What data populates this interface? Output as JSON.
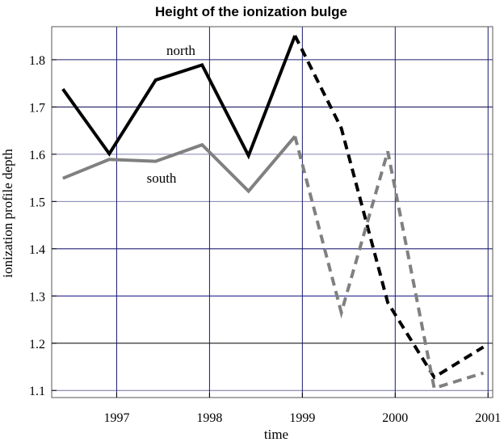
{
  "chart_data": {
    "type": "line",
    "title": "Height of the ionization bulge",
    "xlabel": "time",
    "ylabel": "ionization profile depth",
    "xlim": [
      1996.3,
      2001.05
    ],
    "ylim": [
      1.085,
      1.87
    ],
    "x_ticks": [
      1997,
      1998,
      1999,
      2000,
      2001
    ],
    "x_tick_labels": [
      "1997",
      "1998",
      "1999",
      "2000",
      "2001"
    ],
    "y_ticks": [
      1.1,
      1.2,
      1.3,
      1.4,
      1.5,
      1.6,
      1.7,
      1.8
    ],
    "y_tick_labels": [
      "1.1",
      "1.2",
      "1.3",
      "1.4",
      "1.5",
      "1.6",
      "1.7",
      "1.8"
    ],
    "grid": true,
    "series": [
      {
        "name": "north",
        "color": "#000000",
        "solid": {
          "x": [
            1996.42,
            1996.92,
            1997.42,
            1997.92,
            1998.42,
            1998.92
          ],
          "y": [
            1.738,
            1.601,
            1.757,
            1.789,
            1.597,
            1.851
          ]
        },
        "dashed": {
          "x": [
            1998.92,
            1999.42,
            1999.92,
            2000.42,
            2000.95
          ],
          "y": [
            1.851,
            1.655,
            1.286,
            1.128,
            1.192
          ]
        }
      },
      {
        "name": "south",
        "color": "#808080",
        "solid": {
          "x": [
            1996.42,
            1996.92,
            1997.42,
            1997.92,
            1998.42,
            1998.92
          ],
          "y": [
            1.549,
            1.589,
            1.585,
            1.62,
            1.522,
            1.638
          ]
        },
        "dashed": {
          "x": [
            1998.92,
            1999.42,
            1999.92,
            2000.42,
            2000.95
          ],
          "y": [
            1.638,
            1.265,
            1.606,
            1.105,
            1.137
          ]
        }
      }
    ]
  }
}
